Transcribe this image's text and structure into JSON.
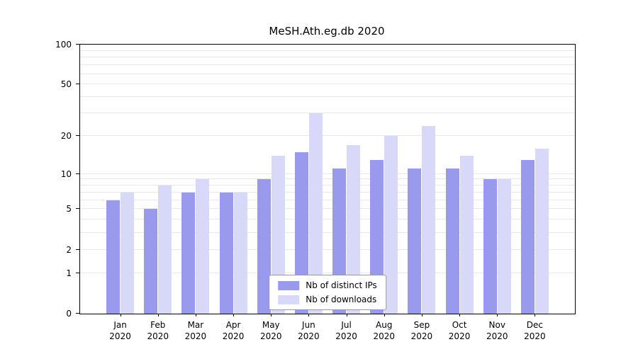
{
  "chart_data": {
    "type": "bar",
    "title": "MeSH.Ath.eg.db 2020",
    "xlabel": "",
    "ylabel": "",
    "year": "2020",
    "categories": [
      "Jan",
      "Feb",
      "Mar",
      "Apr",
      "May",
      "Jun",
      "Jul",
      "Aug",
      "Sep",
      "Oct",
      "Nov",
      "Dec"
    ],
    "series": [
      {
        "name": "Nb of distinct IPs",
        "color": "#9999ee",
        "values": [
          6,
          5,
          7,
          7,
          9,
          15,
          11,
          13,
          11,
          11,
          9,
          13
        ]
      },
      {
        "name": "Nb of downloads",
        "color": "#d8d8f8",
        "values": [
          7,
          8,
          9,
          7,
          14,
          30,
          17,
          20,
          24,
          14,
          9,
          16
        ]
      }
    ],
    "y_scale": "log1p",
    "ylim": [
      0,
      100
    ],
    "y_ticks": [
      0,
      1,
      2,
      5,
      10,
      20,
      50,
      100
    ],
    "y_minor_gridlines": [
      1,
      2,
      3,
      4,
      5,
      6,
      7,
      8,
      9,
      10,
      20,
      30,
      40,
      50,
      60,
      70,
      80,
      90
    ],
    "grid": true,
    "legend_position": "lower center",
    "colors": {
      "grid": "#e8e8e8",
      "axis": "#000000",
      "background": "#ffffff"
    }
  }
}
